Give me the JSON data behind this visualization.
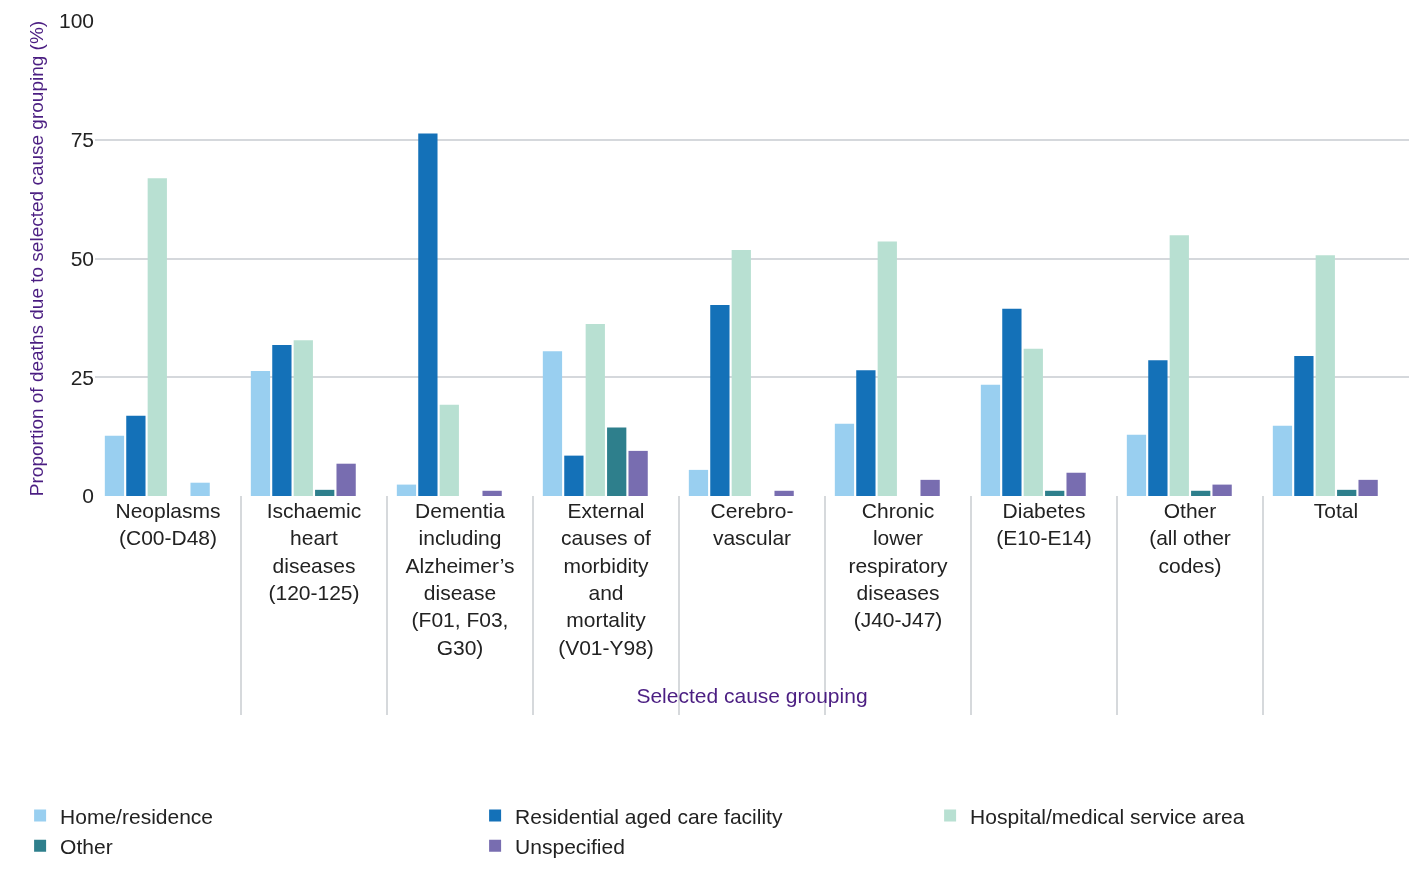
{
  "chart_data": {
    "type": "bar",
    "categories": [
      "Neoplasms (C00-D48)",
      "Ischaemic heart diseases (120-125)",
      "Dementia including Alzheimer’s disease (F01, F03, G30)",
      "External causes of morbidity and mortality (V01-Y98)",
      "Cerebro-vascular",
      "Chronic lower respiratory diseases (J40-J47)",
      "Diabetes (E10-E14)",
      "Other (all other codes)",
      "Total"
    ],
    "series": [
      {
        "name": "Home/residence",
        "color": "#99cff0",
        "values": [
          12.7,
          26.3,
          2.4,
          30.5,
          5.5,
          15.2,
          23.4,
          12.9,
          14.8
        ]
      },
      {
        "name": "Residential aged care facility",
        "color": "#1471b8",
        "values": [
          16.9,
          31.8,
          76.3,
          8.5,
          40.2,
          26.5,
          39.4,
          28.6,
          29.5
        ]
      },
      {
        "name": "Hospital/medical service area",
        "color": "#b8e0d2",
        "values": [
          66.9,
          32.8,
          19.2,
          36.2,
          51.8,
          53.6,
          31.0,
          54.9,
          50.7
        ]
      },
      {
        "name": "Other",
        "color": "#2e7f8c",
        "values": [
          null,
          1.3,
          null,
          14.4,
          null,
          null,
          1.1,
          1.1,
          1.3
        ]
      },
      {
        "name": "Unspecified",
        "color": "#786db0",
        "colors": [
          "#99cff0",
          "#786db0",
          "#786db0",
          "#786db0",
          "#786db0",
          "#786db0",
          "#786db0",
          "#786db0",
          "#786db0"
        ],
        "values": [
          2.8,
          6.8,
          1.1,
          9.5,
          1.1,
          3.4,
          4.9,
          2.4,
          3.4
        ]
      }
    ],
    "xlabel": "Selected cause grouping",
    "ylabel": "Proportion of deaths due to selected cause grouping (%)",
    "ylim": [
      0,
      100
    ],
    "yticks": [
      0,
      25,
      50,
      75,
      100
    ],
    "grid": "y",
    "legend": "bottom"
  }
}
